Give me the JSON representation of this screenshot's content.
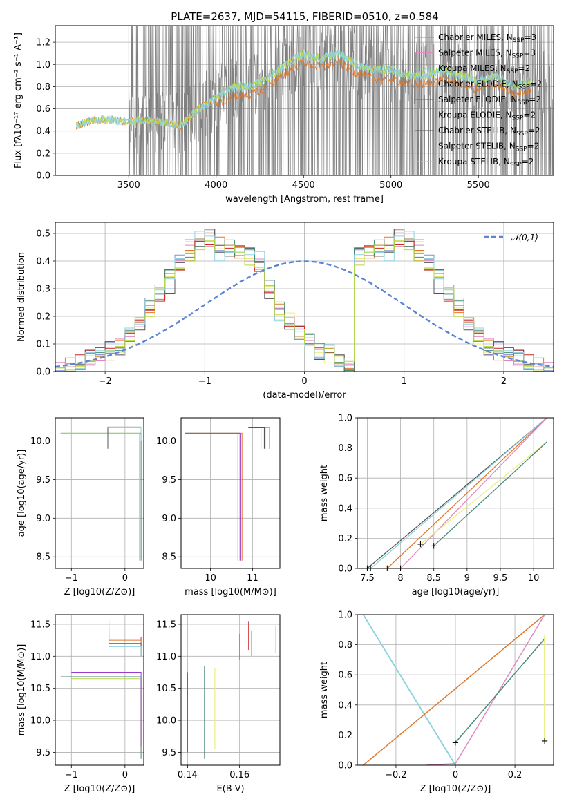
{
  "figure": {
    "title": "PLATE=2637, MJD=54115, FIBERID=0510, z=0.584"
  },
  "colors": {
    "Chabrier MILES": "#7b8fd6",
    "Salpeter MILES": "#e088c0",
    "Kroupa MILES": "#88c9a0",
    "Chabrier ELODIE": "#b8d640",
    "Salpeter ELODIE": "#9c3ccc",
    "Kroupa ELODIE": "#e8f07a",
    "Chabrier STELIB": "#555555",
    "Salpeter STELIB": "#cc2a2a",
    "Kroupa STELIB": "#8fd3e0",
    "orange": "#e0782a",
    "teal": "#4a8a76",
    "dashed": "#5b84d6",
    "grid": "#b0b0b0"
  },
  "chart_data": [
    {
      "type": "line",
      "panel": "spectrum",
      "xlabel": "wavelength [Angstrom, rest frame]",
      "ylabel": "Flux [fλ10⁻¹⁷ erg cm⁻² s⁻¹ A⁻¹]",
      "xlim": [
        3080,
        5930
      ],
      "ylim": [
        0,
        1.35
      ],
      "xticks": [
        3500,
        4000,
        4500,
        5000,
        5500
      ],
      "yticks": [
        0.0,
        0.2,
        0.4,
        0.6,
        0.8,
        1.0,
        1.2
      ],
      "legend_position": "top-right",
      "legend": [
        "Chabrier MILES, N_SSP=3",
        "Salpeter MILES, N_SSP=3",
        "Kroupa MILES, N_SSP=2",
        "Chabrier ELODIE, N_SSP=2",
        "Salpeter ELODIE, N_SSP=2",
        "Kroupa ELODIE, N_SSP=2",
        "Chabrier STELIB, N_SSP=2",
        "Salpeter STELIB, N_SSP=2",
        "Kroupa STELIB, N_SSP=2"
      ],
      "model_x": [
        3200,
        3300,
        3400,
        3500,
        3600,
        3700,
        3800,
        3900,
        4000,
        4100,
        4200,
        4300,
        4400,
        4500,
        4600,
        4700,
        4800,
        4900,
        5000,
        5100,
        5200,
        5300,
        5400,
        5500,
        5600,
        5700,
        5800
      ],
      "model_y": [
        0.45,
        0.5,
        0.5,
        0.48,
        0.5,
        0.48,
        0.45,
        0.6,
        0.7,
        0.8,
        0.8,
        0.88,
        1.0,
        1.1,
        1.05,
        1.1,
        1.0,
        0.95,
        0.95,
        0.9,
        0.9,
        0.95,
        0.9,
        0.85,
        0.9,
        0.8,
        0.85
      ]
    },
    {
      "type": "line",
      "panel": "residuals",
      "xlabel": "(data-model)/error",
      "ylabel": "Normed distribution",
      "xlim": [
        -2.5,
        2.5
      ],
      "ylim": [
        0,
        0.54
      ],
      "xticks": [
        -2,
        -1,
        0,
        1,
        2
      ],
      "yticks": [
        0.0,
        0.1,
        0.2,
        0.3,
        0.4,
        0.5
      ],
      "legend": [
        "𝒩(0,1)"
      ],
      "histogram_bin_width": 0.1,
      "series": [
        {
          "values": [
            0.01,
            0.02,
            0.03,
            0.04,
            0.06,
            0.07,
            0.09,
            0.12,
            0.19,
            0.23,
            0.26,
            0.34,
            0.39,
            0.44,
            0.45,
            0.48,
            0.46,
            0.46,
            0.44,
            0.42,
            0.38,
            0.31,
            0.23,
            0.19,
            0.14,
            0.11,
            0.08,
            0.06,
            0.04,
            0.03
          ]
        },
        {
          "values": [
            0.01,
            0.02,
            0.02,
            0.05,
            0.07,
            0.08,
            0.08,
            0.13,
            0.18,
            0.24,
            0.29,
            0.31,
            0.41,
            0.45,
            0.49,
            0.49,
            0.42,
            0.44,
            0.43,
            0.42,
            0.41,
            0.29,
            0.21,
            0.17,
            0.15,
            0.11,
            0.07,
            0.07,
            0.04,
            0.02
          ]
        },
        {
          "values": [
            0.01,
            0.03,
            0.04,
            0.05,
            0.06,
            0.09,
            0.08,
            0.12,
            0.17,
            0.22,
            0.28,
            0.35,
            0.37,
            0.43,
            0.47,
            0.47,
            0.45,
            0.43,
            0.44,
            0.41,
            0.38,
            0.3,
            0.22,
            0.19,
            0.14,
            0.1,
            0.08,
            0.06,
            0.04,
            0.02
          ]
        }
      ]
    },
    {
      "type": "line",
      "panel": "age_vs_Z",
      "xlabel": "Z [log10(Z/Z⊙)]",
      "ylabel": "age  [log10(age/yr)]",
      "xlim": [
        -1.3,
        0.35
      ],
      "ylim": [
        8.35,
        10.3
      ],
      "xticks": [
        -1,
        0
      ],
      "yticks": [
        8.5,
        9.0,
        9.5,
        10.0
      ]
    },
    {
      "type": "line",
      "panel": "age_vs_mass",
      "xlabel": "mass [log10(M/M⊙)]",
      "ylabel": "",
      "xlim": [
        9.3,
        11.65
      ],
      "ylim": [
        8.35,
        10.3
      ],
      "xticks": [
        10,
        11
      ],
      "yticks": [
        8.5,
        9.0,
        9.5,
        10.0
      ]
    },
    {
      "type": "line",
      "panel": "mass_weight_vs_age",
      "xlabel": "age  [log10(age/yr)]",
      "ylabel": "mass weight",
      "xlim": [
        7.35,
        10.3
      ],
      "ylim": [
        0,
        1
      ],
      "xticks": [
        7.5,
        8.0,
        8.5,
        9.0,
        9.5,
        10.0
      ],
      "yticks": [
        0.0,
        0.2,
        0.4,
        0.6,
        0.8,
        1.0
      ]
    },
    {
      "type": "line",
      "panel": "mass_vs_Z",
      "xlabel": "Z [log10(Z/Z⊙)]",
      "ylabel": "mass [log10(M/M⊙)]",
      "xlim": [
        -1.3,
        0.35
      ],
      "ylim": [
        9.3,
        11.65
      ],
      "xticks": [
        -1,
        0
      ],
      "yticks": [
        9.5,
        10.0,
        10.5,
        11.0,
        11.5
      ]
    },
    {
      "type": "line",
      "panel": "mass_vs_EBV",
      "xlabel": "E(B-V)",
      "ylabel": "",
      "xlim": [
        0.1375,
        0.1755
      ],
      "ylim": [
        9.3,
        11.65
      ],
      "xticks": [
        0.14,
        0.16
      ],
      "yticks": [
        9.5,
        10.0,
        10.5,
        11.0,
        11.5
      ]
    },
    {
      "type": "line",
      "panel": "mass_weight_vs_Z",
      "xlabel": "Z [log10(Z/Z⊙)]",
      "ylabel": "mass weight",
      "xlim": [
        -0.33,
        0.33
      ],
      "ylim": [
        0,
        1
      ],
      "xticks": [
        -0.2,
        0.0,
        0.2
      ],
      "yticks": [
        0.0,
        0.2,
        0.4,
        0.6,
        0.8,
        1.0
      ]
    }
  ]
}
